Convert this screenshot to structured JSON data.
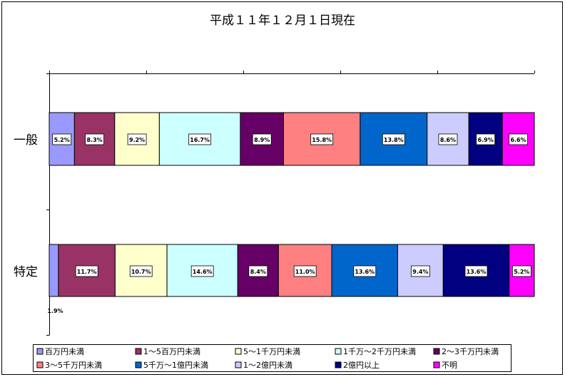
{
  "chart_data": {
    "type": "bar",
    "orientation": "horizontal",
    "stacked": "percent",
    "title": "平成１１年１２月１日現在",
    "categories": [
      "一般",
      "特定"
    ],
    "series": [
      {
        "name": "百万円未満",
        "color": "#9999FF",
        "values": [
          5.2,
          1.9
        ]
      },
      {
        "name": "1～5百万円未満",
        "color": "#993366",
        "values": [
          8.3,
          11.7
        ]
      },
      {
        "name": "5～1千万円未満",
        "color": "#FFFFCC",
        "values": [
          9.2,
          10.7
        ]
      },
      {
        "name": "1千万～2千万円未満",
        "color": "#CCFFFF",
        "values": [
          16.7,
          14.6
        ]
      },
      {
        "name": "2～3千万円未満",
        "color": "#660066",
        "values": [
          8.9,
          8.4
        ]
      },
      {
        "name": "3～5千万円未満",
        "color": "#FF8080",
        "values": [
          15.8,
          11.0
        ]
      },
      {
        "name": "5千万～1億円未満",
        "color": "#0066CC",
        "values": [
          13.8,
          13.6
        ]
      },
      {
        "name": "1～2億円未満",
        "color": "#CCCCFF",
        "values": [
          8.6,
          9.4
        ]
      },
      {
        "name": "2億円以上",
        "color": "#000080",
        "values": [
          6.9,
          13.6
        ]
      },
      {
        "name": "不明",
        "color": "#FF00FF",
        "values": [
          6.6,
          5.2
        ]
      }
    ],
    "data_labels": [
      [
        "5.2%",
        "8.3%",
        "9.2%",
        "16.7%",
        "8.9%",
        "15.8%",
        "13.8%",
        "8.6%",
        "6.9%",
        "6.6%"
      ],
      [
        "1.9%",
        "11.7%",
        "10.7%",
        "14.6%",
        "8.4%",
        "11.0%",
        "13.6%",
        "9.4%",
        "13.6%",
        "5.2%"
      ]
    ],
    "xlim": [
      0,
      100
    ],
    "grid": false,
    "legend_position": "bottom"
  }
}
